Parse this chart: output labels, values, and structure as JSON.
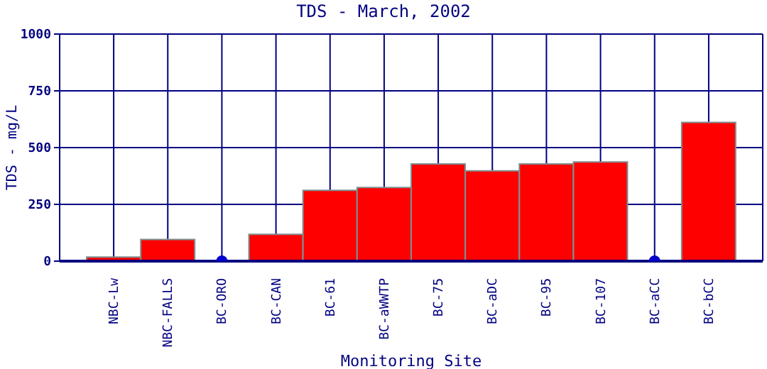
{
  "chart_data": {
    "type": "bar",
    "title": "TDS - March, 2002",
    "xlabel": "Monitoring Site",
    "ylabel": "TDS - mg/L",
    "categories": [
      "NBC-Lw",
      "NBC-FALLS",
      "BC-ORO",
      "BC-CAN",
      "BC-61",
      "BC-aWWTP",
      "BC-75",
      "BC-aDC",
      "BC-95",
      "BC-107",
      "BC-aCC",
      "BC-bCC"
    ],
    "series": [
      {
        "color": "#ff0000",
        "values": [
          18,
          95,
          null,
          118,
          312,
          324,
          428,
          398,
          428,
          437,
          null,
          611
        ]
      },
      {
        "type": "scatter",
        "color": "#0000cc",
        "x": [
          "BC-ORO",
          "BC-aCC"
        ],
        "values": [
          0,
          0
        ]
      }
    ],
    "ylim": [
      0,
      1000
    ],
    "yticks": [
      0,
      250,
      500,
      750,
      1000
    ],
    "grid": true
  }
}
